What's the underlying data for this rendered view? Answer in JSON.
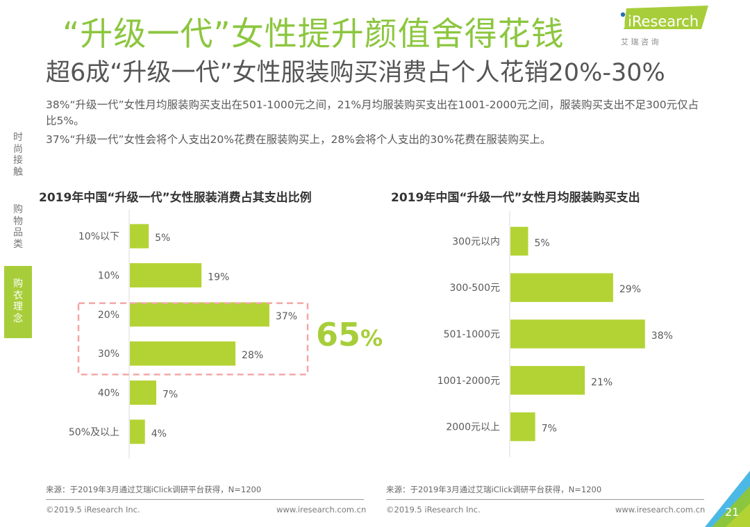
{
  "header": {
    "title": "“升级一代”女性提升颜值舍得花钱",
    "subtitle": "超6成“升级一代”女性服装购买消费占个人花销20%-30%",
    "logo_text": "iResearch",
    "logo_sub": "艾 瑞 咨 询"
  },
  "paragraphs": [
    "38%“升级一代”女性月均服装购买支出在501-1000元之间，21%月均服装购买支出在1001-2000元之间，服装购买支出不足300元仅占比5%。",
    "37%“升级一代”女性会将个人支出20%花费在服装购买上，28%会将个人支出的30%花费在服装购买上。"
  ],
  "sidebar": {
    "items": [
      {
        "label": "时尚接触",
        "active": false
      },
      {
        "label": "购物品类",
        "active": false
      },
      {
        "label": "购衣理念",
        "active": true
      }
    ]
  },
  "highlight": {
    "value": "65",
    "unit": "%",
    "box_color": "#f4a6a6"
  },
  "colors": {
    "bar": "#b3d334",
    "title": "#8cc63f",
    "accent_blue": "#4cb8e6"
  },
  "chart_data": [
    {
      "type": "bar",
      "orientation": "horizontal",
      "title": "2019年中国“升级一代”女性服装消费占其支出比例",
      "categories": [
        "10%以下",
        "10%",
        "20%",
        "30%",
        "40%",
        "50%及以上"
      ],
      "values": [
        5,
        19,
        37,
        28,
        7,
        4
      ],
      "value_labels": [
        "5%",
        "19%",
        "37%",
        "28%",
        "7%",
        "4%"
      ],
      "xlim": [
        0,
        40
      ],
      "grid": false,
      "highlighted_categories": [
        "20%",
        "30%"
      ],
      "source": "来源：于2019年3月通过艾瑞iClick调研平台获得，N=1200"
    },
    {
      "type": "bar",
      "orientation": "horizontal",
      "title": "2019年中国“升级一代”女性月均服装购买支出",
      "categories": [
        "300元以内",
        "300-500元",
        "501-1000元",
        "1001-2000元",
        "2000元以上"
      ],
      "values": [
        5,
        29,
        38,
        21,
        7
      ],
      "value_labels": [
        "5%",
        "29%",
        "38%",
        "21%",
        "7%"
      ],
      "xlim": [
        0,
        40
      ],
      "grid": false,
      "source": "来源：于2019年3月通过艾瑞iClick调研平台获得，N=1200"
    }
  ],
  "footer": {
    "copyright": "©2019.5 iResearch Inc.",
    "url": "www.iresearch.com.cn",
    "page_number": "21"
  }
}
